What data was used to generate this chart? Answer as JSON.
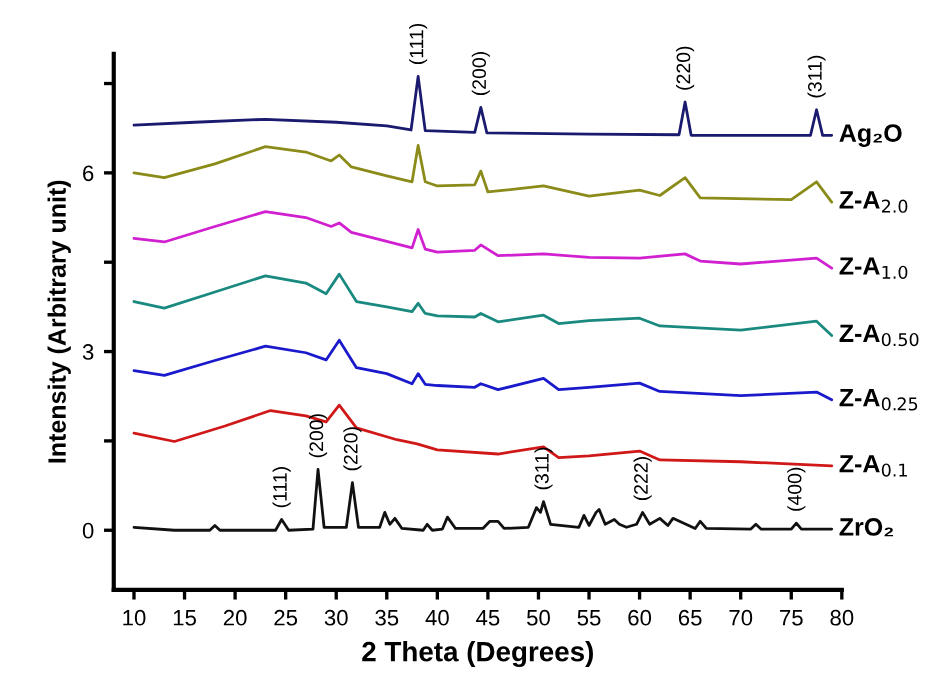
{
  "chart_data": {
    "type": "line",
    "xlabel": "2 Theta (Degrees)",
    "ylabel": "Intensity (Arbitrary unit)",
    "xlim": [
      8,
      80
    ],
    "ylim": [
      -1,
      8
    ],
    "xticks": [
      10,
      15,
      20,
      25,
      30,
      35,
      40,
      45,
      50,
      55,
      60,
      65,
      70,
      75,
      80
    ],
    "yticks": [
      0,
      {
        "value": 1.5,
        "label": null
      },
      3,
      {
        "value": 4.5,
        "label": null
      },
      6,
      {
        "value": 7.5,
        "label": null
      }
    ],
    "grid": false,
    "legend": false,
    "marker": "none",
    "line_style": "solid",
    "series": [
      {
        "name": "Ag₂O",
        "color": "#1a1a6e",
        "x": [
          10,
          16,
          23,
          30,
          35,
          37.4,
          38.1,
          38.8,
          43.7,
          44.3,
          44.9,
          55,
          63.9,
          64.5,
          65.1,
          76.9,
          77.5,
          78.1,
          79
        ],
        "values": [
          6.8,
          6.85,
          6.9,
          6.85,
          6.79,
          6.72,
          7.62,
          6.71,
          6.68,
          7.1,
          6.67,
          6.65,
          6.64,
          7.19,
          6.63,
          6.63,
          7.06,
          6.63,
          6.63
        ]
      },
      {
        "name": "Z-A$_{2.0}$",
        "color": "#8b8b1a",
        "x": [
          10,
          13,
          18,
          23,
          27,
          29.5,
          30.3,
          31.5,
          35,
          37.5,
          38.1,
          38.8,
          40,
          43.7,
          44.3,
          45,
          50.5,
          55,
          60,
          62,
          64.5,
          66,
          75,
          77.5,
          79
        ],
        "values": [
          6.0,
          5.92,
          6.15,
          6.44,
          6.35,
          6.2,
          6.3,
          6.1,
          5.95,
          5.85,
          6.46,
          5.85,
          5.78,
          5.8,
          6.03,
          5.68,
          5.78,
          5.61,
          5.71,
          5.62,
          5.92,
          5.58,
          5.55,
          5.85,
          5.51
        ]
      },
      {
        "name": "Z-A$_{1.0}$",
        "color": "#d020d0",
        "x": [
          10,
          13,
          18,
          23,
          27,
          29.5,
          30.3,
          31.5,
          35,
          37.5,
          38.1,
          38.8,
          40,
          43.7,
          44.3,
          46,
          50.5,
          55,
          60,
          64.5,
          66,
          70,
          77.5,
          79
        ],
        "values": [
          4.9,
          4.84,
          5.1,
          5.35,
          5.25,
          5.1,
          5.16,
          5.0,
          4.85,
          4.74,
          5.05,
          4.72,
          4.67,
          4.7,
          4.79,
          4.61,
          4.64,
          4.58,
          4.57,
          4.64,
          4.52,
          4.47,
          4.57,
          4.4
        ]
      },
      {
        "name": "Z-A$_{0.50}$",
        "color": "#1a8a80",
        "x": [
          10,
          13,
          18,
          23,
          27,
          29,
          30.3,
          32,
          35,
          37.5,
          38.1,
          38.8,
          40,
          43.7,
          44.3,
          46,
          50.5,
          52,
          55,
          60,
          62,
          70,
          77.5,
          79
        ],
        "values": [
          3.84,
          3.73,
          4.0,
          4.27,
          4.15,
          3.97,
          4.3,
          3.84,
          3.75,
          3.67,
          3.81,
          3.64,
          3.6,
          3.58,
          3.64,
          3.5,
          3.61,
          3.47,
          3.52,
          3.56,
          3.43,
          3.36,
          3.51,
          3.27
        ]
      },
      {
        "name": "Z-A$_{0.25}$",
        "color": "#1a1acc",
        "x": [
          10,
          13,
          18,
          23,
          27,
          29,
          30.3,
          32,
          35,
          37.5,
          38.1,
          38.8,
          40,
          43.7,
          44.3,
          46,
          50.5,
          52,
          55,
          60,
          62,
          70,
          77.5,
          79
        ],
        "values": [
          2.68,
          2.6,
          2.85,
          3.09,
          2.98,
          2.86,
          3.19,
          2.73,
          2.63,
          2.46,
          2.63,
          2.45,
          2.43,
          2.4,
          2.46,
          2.36,
          2.55,
          2.36,
          2.4,
          2.47,
          2.33,
          2.26,
          2.32,
          2.19
        ]
      },
      {
        "name": "Z-A$_{0.1}$",
        "color": "#d01818",
        "x": [
          10,
          14,
          19,
          23.5,
          27,
          29,
          30.3,
          32,
          36,
          38,
          40,
          46,
          50.5,
          52,
          55,
          60,
          62,
          70,
          79
        ],
        "values": [
          1.63,
          1.49,
          1.75,
          2.01,
          1.92,
          1.82,
          2.1,
          1.72,
          1.52,
          1.45,
          1.35,
          1.28,
          1.4,
          1.22,
          1.25,
          1.33,
          1.18,
          1.15,
          1.08
        ]
      },
      {
        "name": "ZrO₂",
        "color": "#111111",
        "x": [
          10,
          14,
          17.5,
          18,
          18.5,
          24,
          24.6,
          25.3,
          27.7,
          28.2,
          28.8,
          31,
          31.6,
          32.2,
          34.3,
          34.8,
          35.3,
          35.8,
          36.5,
          38.6,
          39,
          39.5,
          40.5,
          41,
          41.8,
          44.5,
          45.2,
          46,
          46.6,
          49,
          49.8,
          50.2,
          50.5,
          51.2,
          54,
          54.5,
          55,
          55.7,
          56,
          56.6,
          57.5,
          58,
          58.7,
          59.7,
          60.3,
          61,
          62,
          62.8,
          63.3,
          65.5,
          66,
          66.6,
          71,
          71.5,
          72,
          75,
          75.5,
          76,
          79
        ],
        "values": [
          0.05,
          0.0,
          0.0,
          0.08,
          0.0,
          0.0,
          0.18,
          0.0,
          0.02,
          1.02,
          0.05,
          0.05,
          0.8,
          0.05,
          0.05,
          0.3,
          0.1,
          0.2,
          0.03,
          0.0,
          0.1,
          0.0,
          0.02,
          0.22,
          0.03,
          0.03,
          0.15,
          0.15,
          0.03,
          0.05,
          0.38,
          0.3,
          0.48,
          0.1,
          0.05,
          0.25,
          0.08,
          0.3,
          0.35,
          0.1,
          0.18,
          0.1,
          0.05,
          0.1,
          0.3,
          0.1,
          0.2,
          0.08,
          0.2,
          0.03,
          0.15,
          0.03,
          0.02,
          0.1,
          0.02,
          0.02,
          0.12,
          0.02,
          0.02
        ]
      }
    ],
    "annotations": [
      {
        "text": "(111)",
        "x": 38.1,
        "y": 7.62
      },
      {
        "text": "(200)",
        "x": 44.3,
        "y": 7.1
      },
      {
        "text": "(220)",
        "x": 64.5,
        "y": 7.19
      },
      {
        "text": "(311)",
        "x": 77.5,
        "y": 7.06
      },
      {
        "text": "(111)",
        "x": 24.6,
        "y": 0.18
      },
      {
        "text": "(200)",
        "x": 28.2,
        "y": 1.02
      },
      {
        "text": "(220)",
        "x": 31.6,
        "y": 0.8
      },
      {
        "text": "(311)",
        "x": 50.5,
        "y": 0.48
      },
      {
        "text": "(222)",
        "x": 60.3,
        "y": 0.3
      },
      {
        "text": "(400)",
        "x": 75.5,
        "y": 0.12
      }
    ]
  }
}
